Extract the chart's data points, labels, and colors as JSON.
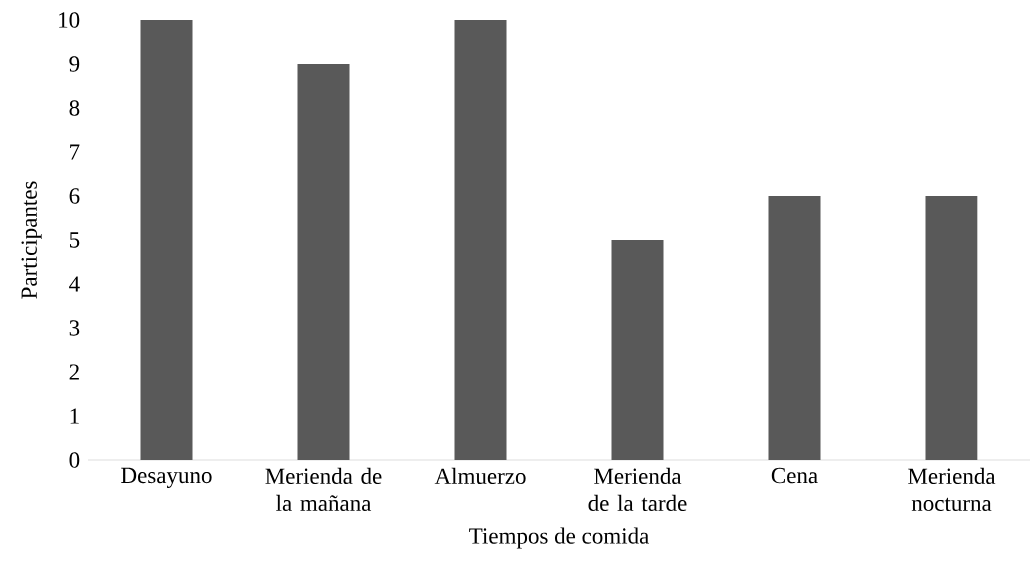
{
  "chart_data": {
    "type": "bar",
    "xlabel": "Tiempos de comida",
    "ylabel": "Participantes",
    "categories": [
      "Desayuno",
      "Merienda de la mañana",
      "Almuerzo",
      "Merienda de la tarde",
      "Cena",
      "Merienda nocturna"
    ],
    "values": [
      10,
      9,
      10,
      5,
      6,
      6
    ],
    "color": "#595959",
    "ylim": [
      0,
      10
    ],
    "yticks": [
      0,
      1,
      2,
      3,
      4,
      5,
      6,
      7,
      8,
      9,
      10
    ]
  }
}
